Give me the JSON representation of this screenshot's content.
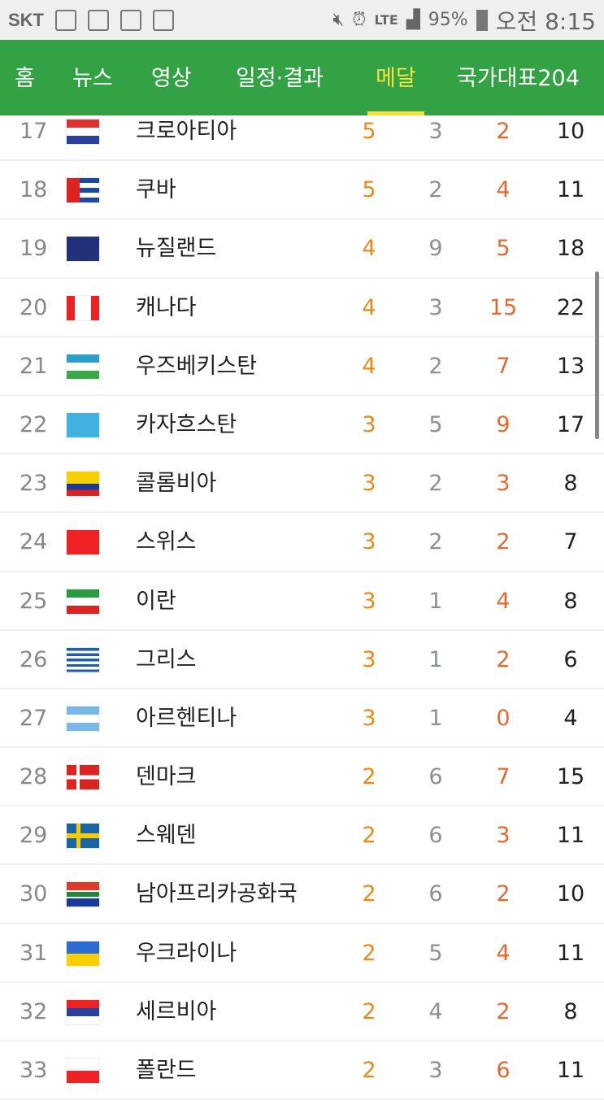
{
  "status_bar": {
    "carrier": "SKT",
    "network": "LTE",
    "battery": "95%",
    "time": "오전 8:15"
  },
  "nav": {
    "tabs": [
      {
        "label": "홈"
      },
      {
        "label": "뉴스"
      },
      {
        "label": "영상"
      },
      {
        "label": "일정·결과"
      },
      {
        "label": "메달",
        "selected": true
      },
      {
        "label": "국가대표204"
      }
    ]
  },
  "colors": {
    "nav_bg": "#33a244",
    "selected_tab": "#f7e23b",
    "gold": "#e8891a",
    "silver": "#8a9096",
    "bronze": "#e8672e"
  },
  "medals": [
    {
      "rank": "17",
      "flag": "croatia",
      "name": "크로아티아",
      "gold": "5",
      "silver": "3",
      "bronze": "2",
      "total": "10"
    },
    {
      "rank": "18",
      "flag": "cuba",
      "name": "쿠바",
      "gold": "5",
      "silver": "2",
      "bronze": "4",
      "total": "11"
    },
    {
      "rank": "19",
      "flag": "new-zealand",
      "name": "뉴질랜드",
      "gold": "4",
      "silver": "9",
      "bronze": "5",
      "total": "18"
    },
    {
      "rank": "20",
      "flag": "canada",
      "name": "캐나다",
      "gold": "4",
      "silver": "3",
      "bronze": "15",
      "total": "22"
    },
    {
      "rank": "21",
      "flag": "uzbekistan",
      "name": "우즈베키스탄",
      "gold": "4",
      "silver": "2",
      "bronze": "7",
      "total": "13"
    },
    {
      "rank": "22",
      "flag": "kazakhstan",
      "name": "카자흐스탄",
      "gold": "3",
      "silver": "5",
      "bronze": "9",
      "total": "17"
    },
    {
      "rank": "23",
      "flag": "colombia",
      "name": "콜롬비아",
      "gold": "3",
      "silver": "2",
      "bronze": "3",
      "total": "8"
    },
    {
      "rank": "24",
      "flag": "switzerland",
      "name": "스위스",
      "gold": "3",
      "silver": "2",
      "bronze": "2",
      "total": "7"
    },
    {
      "rank": "25",
      "flag": "iran",
      "name": "이란",
      "gold": "3",
      "silver": "1",
      "bronze": "4",
      "total": "8"
    },
    {
      "rank": "26",
      "flag": "greece",
      "name": "그리스",
      "gold": "3",
      "silver": "1",
      "bronze": "2",
      "total": "6"
    },
    {
      "rank": "27",
      "flag": "argentina",
      "name": "아르헨티나",
      "gold": "3",
      "silver": "1",
      "bronze": "0",
      "total": "4"
    },
    {
      "rank": "28",
      "flag": "denmark",
      "name": "덴마크",
      "gold": "2",
      "silver": "6",
      "bronze": "7",
      "total": "15"
    },
    {
      "rank": "29",
      "flag": "sweden",
      "name": "스웨덴",
      "gold": "2",
      "silver": "6",
      "bronze": "3",
      "total": "11"
    },
    {
      "rank": "30",
      "flag": "south-africa",
      "name": "남아프리카공화국",
      "gold": "2",
      "silver": "6",
      "bronze": "2",
      "total": "10"
    },
    {
      "rank": "31",
      "flag": "ukraine",
      "name": "우크라이나",
      "gold": "2",
      "silver": "5",
      "bronze": "4",
      "total": "11"
    },
    {
      "rank": "32",
      "flag": "serbia",
      "name": "세르비아",
      "gold": "2",
      "silver": "4",
      "bronze": "2",
      "total": "8"
    },
    {
      "rank": "33",
      "flag": "poland",
      "name": "폴란드",
      "gold": "2",
      "silver": "3",
      "bronze": "6",
      "total": "11"
    }
  ]
}
